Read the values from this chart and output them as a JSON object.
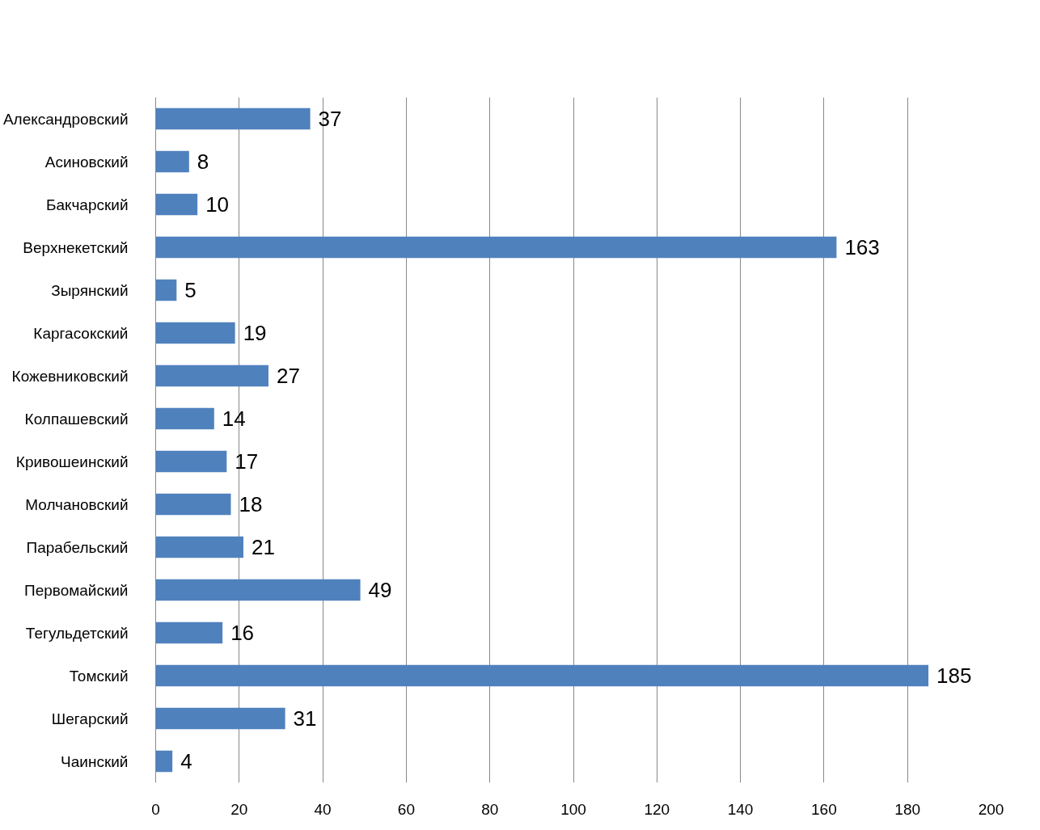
{
  "chart_data": {
    "type": "bar",
    "orientation": "horizontal",
    "categories": [
      "Александровский",
      "Асиновский",
      "Бакчарский",
      "Верхнекетский",
      "Зырянский",
      "Каргасокский",
      "Кожевниковский",
      "Колпашевский",
      "Кривошеинский",
      "Молчановский",
      "Парабельский",
      "Первомайский",
      "Тегульдетский",
      "Томский",
      "Шегарский",
      "Чаинский"
    ],
    "values": [
      37,
      8,
      10,
      163,
      5,
      19,
      27,
      14,
      17,
      18,
      21,
      49,
      16,
      185,
      31,
      4
    ],
    "color": "#4f81bd",
    "xlim": [
      0,
      200
    ],
    "xticks": [
      0,
      20,
      40,
      60,
      80,
      100,
      120,
      140,
      160,
      180,
      200
    ],
    "grid": "x",
    "data_labels": true
  }
}
